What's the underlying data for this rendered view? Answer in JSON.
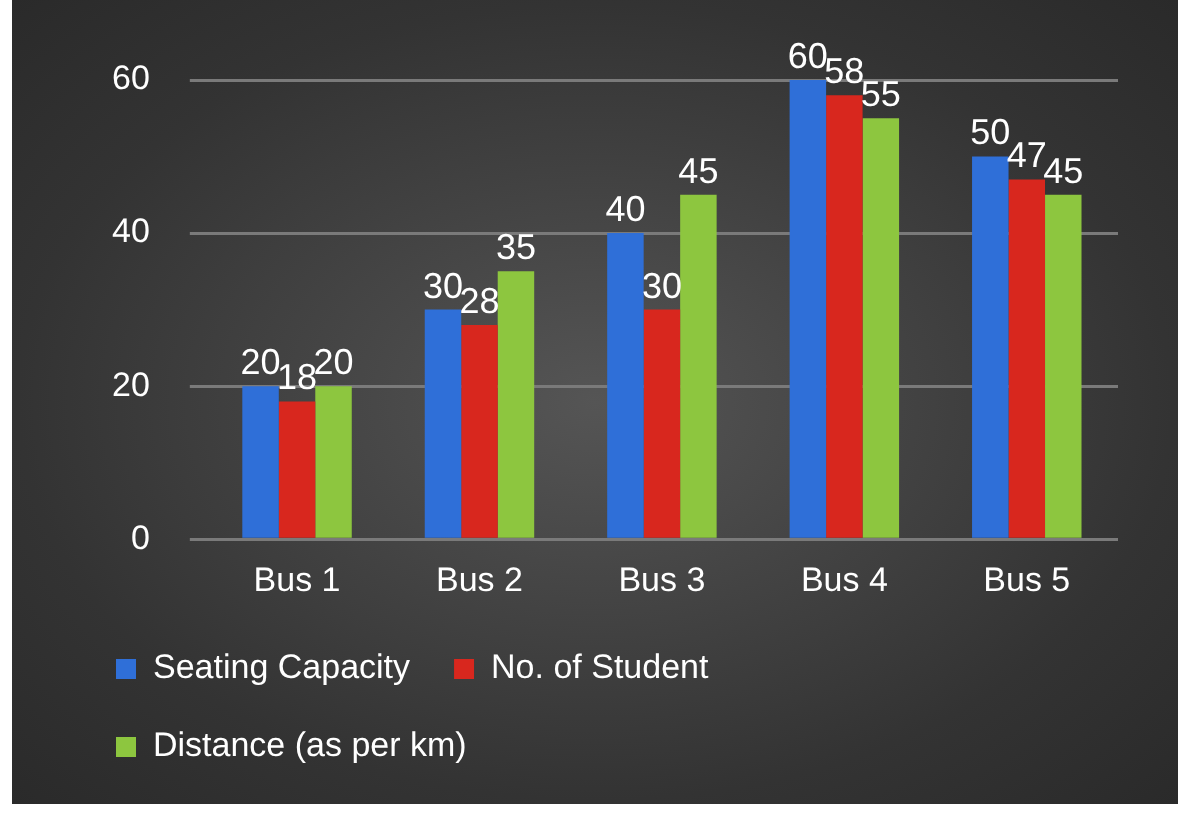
{
  "chart_data": {
    "type": "bar",
    "categories": [
      "Bus 1",
      "Bus 2",
      "Bus 3",
      "Bus 4",
      "Bus 5"
    ],
    "series": [
      {
        "name": "Seating Capacity",
        "color": "#2f6fd8",
        "values": [
          20,
          30,
          40,
          60,
          50
        ]
      },
      {
        "name": "No. of Student",
        "color": "#d8271e",
        "values": [
          18,
          28,
          30,
          58,
          47
        ]
      },
      {
        "name": "Distance (as per km)",
        "color": "#8dc63f",
        "values": [
          20,
          35,
          45,
          55,
          45
        ]
      }
    ],
    "ylim": [
      0,
      60
    ],
    "yticks": [
      0,
      20,
      40,
      60
    ],
    "grid": "y",
    "legend": "bottom",
    "data_labels": true
  }
}
